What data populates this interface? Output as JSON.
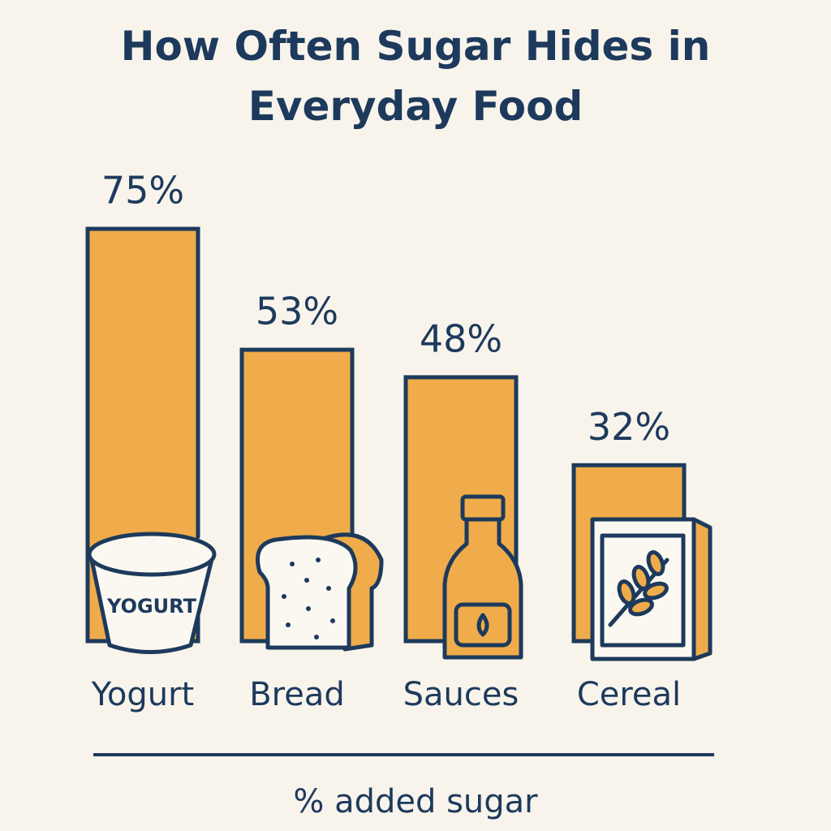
{
  "chart_data": {
    "type": "bar",
    "title": "How Often Sugar Hides in Everyday Food",
    "categories": [
      "Yogurt",
      "Bread",
      "Sauces",
      "Cereal"
    ],
    "values": [
      75,
      53,
      48,
      32
    ],
    "value_labels": [
      "75%",
      "53%",
      "48%",
      "32%"
    ],
    "color": "#f0ac4a",
    "caption": "% added sugar",
    "icon_text": "YOGURT"
  }
}
